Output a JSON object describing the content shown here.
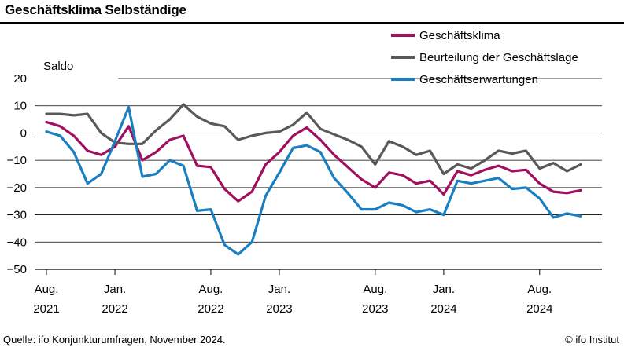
{
  "title": "Geschäftsklima Selbständige",
  "source": "Quelle: ifo Konjunkturumfragen, November 2024.",
  "copyright": "© ifo Institut",
  "chart_data": {
    "type": "line",
    "ylabel": "Saldo",
    "ylim": [
      -50,
      20
    ],
    "yticks": [
      20,
      10,
      0,
      -10,
      -20,
      -30,
      -40,
      -50
    ],
    "grid": "horizontal",
    "legend_position": "top-right",
    "x_start": "2021-08",
    "x_end": "2024-11",
    "xticks": [
      {
        "month": "2021-08",
        "line1": "Aug.",
        "line2": "2021"
      },
      {
        "month": "2022-01",
        "line1": "Jan.",
        "line2": "2022"
      },
      {
        "month": "2022-08",
        "line1": "Aug.",
        "line2": "2022"
      },
      {
        "month": "2023-01",
        "line1": "Jan.",
        "line2": "2023"
      },
      {
        "month": "2023-08",
        "line1": "Aug.",
        "line2": "2023"
      },
      {
        "month": "2024-01",
        "line1": "Jan.",
        "line2": "2024"
      },
      {
        "month": "2024-08",
        "line1": "Aug.",
        "line2": "2024"
      }
    ],
    "x": [
      "2021-08",
      "2021-09",
      "2021-10",
      "2021-11",
      "2021-12",
      "2022-01",
      "2022-02",
      "2022-03",
      "2022-04",
      "2022-05",
      "2022-06",
      "2022-07",
      "2022-08",
      "2022-09",
      "2022-10",
      "2022-11",
      "2022-12",
      "2023-01",
      "2023-02",
      "2023-03",
      "2023-04",
      "2023-05",
      "2023-06",
      "2023-07",
      "2023-08",
      "2023-09",
      "2023-10",
      "2023-11",
      "2023-12",
      "2024-01",
      "2024-02",
      "2024-03",
      "2024-04",
      "2024-05",
      "2024-06",
      "2024-07",
      "2024-08",
      "2024-09",
      "2024-10",
      "2024-11"
    ],
    "series": [
      {
        "name": "Geschäftsklima",
        "color": "#a0105f",
        "values": [
          4,
          2.5,
          -1,
          -6.5,
          -8,
          -5,
          2.5,
          -10,
          -7,
          -2.5,
          -1,
          -12,
          -12.5,
          -20.5,
          -25,
          -21.5,
          -11.5,
          -7,
          -1,
          2,
          -2.5,
          -8,
          -12.5,
          -17,
          -20,
          -14.5,
          -15.5,
          -18.5,
          -17.5,
          -22.5,
          -14,
          -15.5,
          -13.5,
          -12,
          -14,
          -13.5,
          -18.5,
          -21.5,
          -22,
          -21
        ]
      },
      {
        "name": "Beurteilung der Geschäftslage",
        "color": "#595959",
        "values": [
          7,
          7,
          6.5,
          7,
          0,
          -3.5,
          -4,
          -4,
          1,
          5,
          10.5,
          6,
          3.5,
          2.5,
          -2.5,
          -1,
          0,
          0.5,
          3,
          7.5,
          1.5,
          -0.5,
          -2.5,
          -5,
          -11.5,
          -3,
          -5,
          -8,
          -6.5,
          -15,
          -11.5,
          -13,
          -10,
          -6.5,
          -7.5,
          -6.5,
          -13,
          -11,
          -14,
          -11.5
        ]
      },
      {
        "name": "Geschäftserwartungen",
        "color": "#1a7fc1",
        "values": [
          0.5,
          -1,
          -7,
          -18.5,
          -15,
          -3,
          9.5,
          -16,
          -15,
          -10,
          -12,
          -28.5,
          -28,
          -41,
          -44.5,
          -40,
          -23,
          -14.5,
          -5.5,
          -4.5,
          -7,
          -16.5,
          -22,
          -28,
          -28,
          -25.5,
          -26.5,
          -29,
          -28,
          -30,
          -17.5,
          -18.5,
          -17.5,
          -16.5,
          -20.5,
          -20,
          -24,
          -31,
          -29.5,
          -30.5
        ]
      }
    ]
  }
}
